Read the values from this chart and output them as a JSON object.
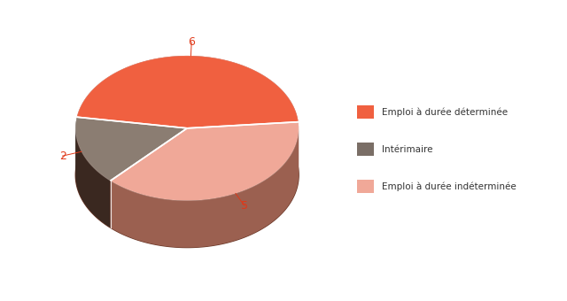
{
  "labels": [
    "Emploi à durée déterminée",
    "Intérimaire",
    "Emploi à durée indéterminée"
  ],
  "values": [
    6,
    2,
    5
  ],
  "colors_top": [
    "#F06040",
    "#8B7D72",
    "#F0A898"
  ],
  "colors_side": [
    "#8B3020",
    "#3A2820",
    "#9B6050"
  ],
  "label_values": [
    "6",
    "2",
    "5"
  ],
  "label_color": "#E03818",
  "legend_colors": [
    "#F06040",
    "#7A6E66",
    "#F0A898"
  ],
  "legend_text_color": "#333333",
  "background_color": "#ffffff",
  "startangle": 5,
  "figsize": [
    6.4,
    3.4
  ]
}
